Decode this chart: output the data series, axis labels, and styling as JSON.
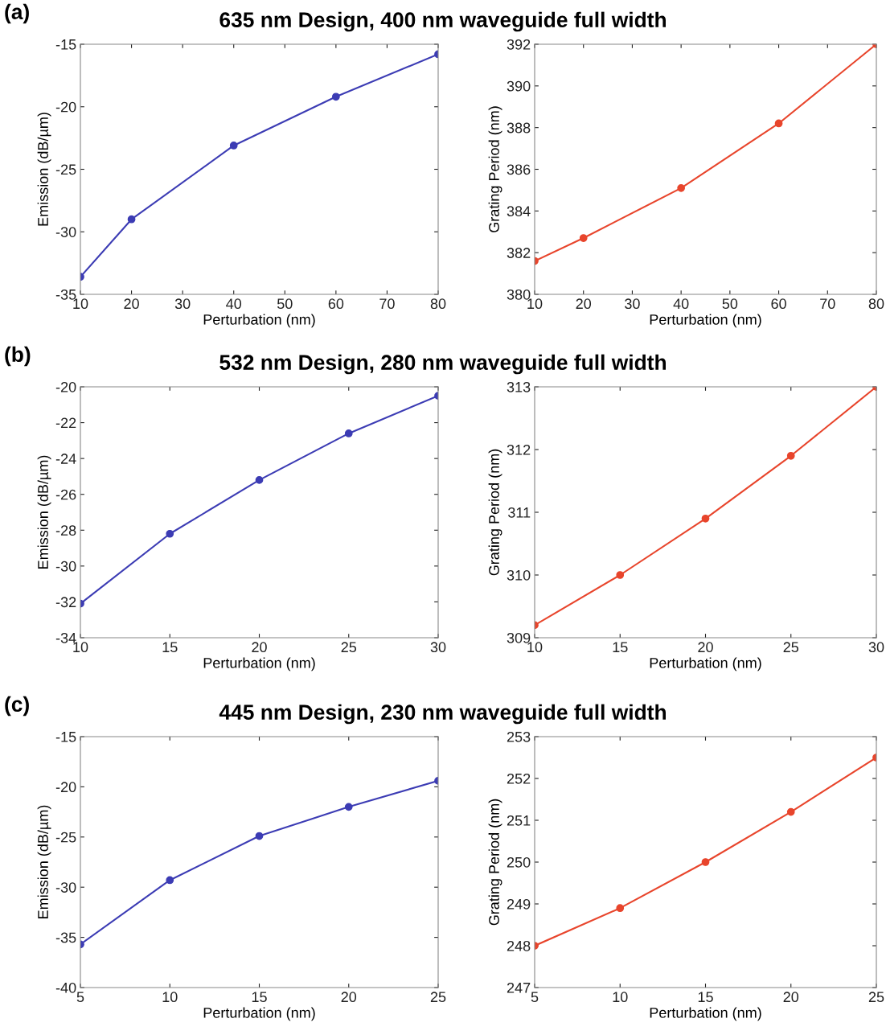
{
  "chart_data": [
    {
      "type": "line",
      "title": "635 nm Design, 400 nm waveguide full width",
      "annotations": [
        "(a)"
      ],
      "xlabel": "Perturbation (nm)",
      "ylabel": "Emission (dB/µm)",
      "x": [
        10,
        20,
        40,
        60,
        80
      ],
      "xlim": [
        10,
        80
      ],
      "xticks": [
        10,
        20,
        30,
        40,
        50,
        60,
        70,
        80
      ],
      "ylim": [
        -35,
        -15
      ],
      "yticks": [
        -35,
        -30,
        -25,
        -20,
        -15
      ],
      "marker": "circle",
      "grid": false,
      "legend": false,
      "series": [
        {
          "color": "#3c3cb4",
          "values": [
            -33.6,
            -29.0,
            -23.1,
            -19.2,
            -15.8
          ]
        }
      ]
    },
    {
      "type": "line",
      "xlabel": "Perturbation (nm)",
      "ylabel": "Grating Period (nm)",
      "x": [
        10,
        20,
        40,
        60,
        80
      ],
      "xlim": [
        10,
        80
      ],
      "xticks": [
        10,
        20,
        30,
        40,
        50,
        60,
        70,
        80
      ],
      "ylim": [
        380,
        392
      ],
      "yticks": [
        380,
        382,
        384,
        386,
        388,
        390,
        392
      ],
      "marker": "circle",
      "grid": false,
      "legend": false,
      "series": [
        {
          "color": "#e8452c",
          "values": [
            381.6,
            382.7,
            385.1,
            388.2,
            392.0
          ]
        }
      ]
    },
    {
      "type": "line",
      "title": "532 nm Design, 280 nm waveguide full width",
      "annotations": [
        "(b)"
      ],
      "xlabel": "Perturbation (nm)",
      "ylabel": "Emission (dB/µm)",
      "x": [
        10,
        15,
        20,
        25,
        30
      ],
      "xlim": [
        10,
        30
      ],
      "xticks": [
        10,
        15,
        20,
        25,
        30
      ],
      "ylim": [
        -34,
        -20
      ],
      "yticks": [
        -34,
        -32,
        -30,
        -28,
        -26,
        -24,
        -22,
        -20
      ],
      "marker": "circle",
      "grid": false,
      "legend": false,
      "series": [
        {
          "color": "#3c3cb4",
          "values": [
            -32.1,
            -28.2,
            -25.2,
            -22.6,
            -20.5
          ]
        }
      ]
    },
    {
      "type": "line",
      "xlabel": "Perturbation (nm)",
      "ylabel": "Grating Period (nm)",
      "x": [
        10,
        15,
        20,
        25,
        30
      ],
      "xlim": [
        10,
        30
      ],
      "xticks": [
        10,
        15,
        20,
        25,
        30
      ],
      "ylim": [
        309,
        313
      ],
      "yticks": [
        309,
        310,
        311,
        312,
        313
      ],
      "marker": "circle",
      "grid": false,
      "legend": false,
      "series": [
        {
          "color": "#e8452c",
          "values": [
            309.2,
            310.0,
            310.9,
            311.9,
            313.0
          ]
        }
      ]
    },
    {
      "type": "line",
      "title": "445 nm Design, 230 nm waveguide full width",
      "annotations": [
        "(c)"
      ],
      "xlabel": "Perturbation (nm)",
      "ylabel": "Emission (dB/µm)",
      "x": [
        5,
        10,
        15,
        20,
        25
      ],
      "xlim": [
        5,
        25
      ],
      "xticks": [
        5,
        10,
        15,
        20,
        25
      ],
      "ylim": [
        -40,
        -15
      ],
      "yticks": [
        -40,
        -35,
        -30,
        -25,
        -20,
        -15
      ],
      "marker": "circle",
      "grid": false,
      "legend": false,
      "series": [
        {
          "color": "#3c3cb4",
          "values": [
            -35.7,
            -29.3,
            -24.9,
            -22.0,
            -19.4
          ]
        }
      ]
    },
    {
      "type": "line",
      "xlabel": "Perturbation (nm)",
      "ylabel": "Grating Period (nm)",
      "x": [
        5,
        10,
        15,
        20,
        25
      ],
      "xlim": [
        5,
        25
      ],
      "xticks": [
        5,
        10,
        15,
        20,
        25
      ],
      "ylim": [
        247,
        253
      ],
      "yticks": [
        247,
        248,
        249,
        250,
        251,
        252,
        253
      ],
      "marker": "circle",
      "grid": false,
      "legend": false,
      "series": [
        {
          "color": "#e8452c",
          "values": [
            248.0,
            248.9,
            250.0,
            251.2,
            252.5
          ]
        }
      ]
    }
  ]
}
